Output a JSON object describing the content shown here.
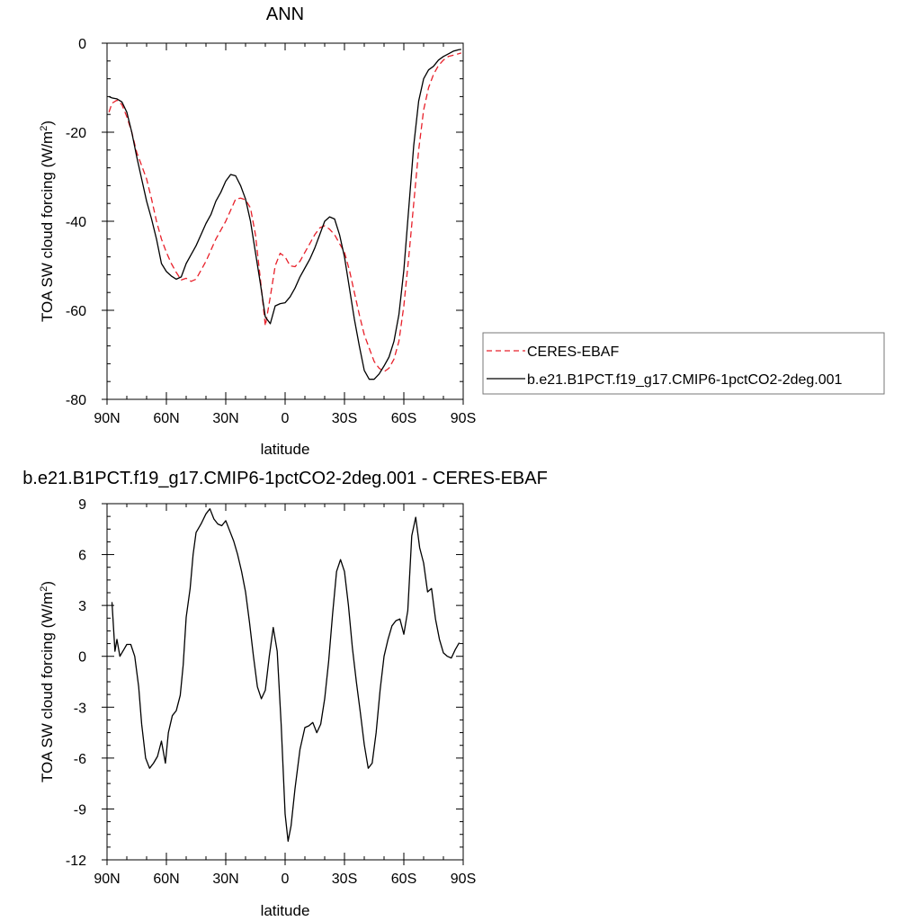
{
  "chart_data": [
    {
      "type": "line",
      "title": "ANN",
      "xlabel": "latitude",
      "ylabel": "TOA SW cloud forcing (W/m²)",
      "ylabel_base": "TOA SW cloud forcing (W/m",
      "ylabel_sup": "2",
      "ylabel_end": ")",
      "xlim": [
        90,
        -90
      ],
      "ylim": [
        -80,
        0
      ],
      "x_ticks": [
        90,
        60,
        30,
        0,
        -30,
        -60,
        -90
      ],
      "x_tick_labels": [
        "90N",
        "60N",
        "30N",
        "0",
        "30S",
        "60S",
        "90S"
      ],
      "y_ticks": [
        0,
        -20,
        -40,
        -60,
        -80
      ],
      "y_tick_labels": [
        "0",
        "-20",
        "-40",
        "-60",
        "-80"
      ],
      "legend_position": "right",
      "series": [
        {
          "name": "CERES-EBAF",
          "color": "#e8202a",
          "dash": "dashed",
          "x": [
            89,
            87.5,
            85,
            82.5,
            80,
            77.5,
            75,
            72.5,
            70,
            67.5,
            65,
            62.5,
            60,
            57.5,
            55,
            52.5,
            50,
            47.5,
            45,
            42.5,
            40,
            37.5,
            35,
            32.5,
            30,
            27.5,
            25,
            22.5,
            20,
            17.5,
            15,
            12.5,
            10,
            7.5,
            5,
            2.5,
            0,
            -2.5,
            -5,
            -7.5,
            -10,
            -12.5,
            -15,
            -17.5,
            -20,
            -22.5,
            -25,
            -27.5,
            -30,
            -32.5,
            -35,
            -37.5,
            -40,
            -42.5,
            -45,
            -47.5,
            -50,
            -52.5,
            -55,
            -57.5,
            -60,
            -62.5,
            -65,
            -67.5,
            -70,
            -72.5,
            -75,
            -77.5,
            -80,
            -82.5,
            -85,
            -87.5,
            -89
          ],
          "y": [
            -15.5,
            -13.5,
            -12.8,
            -13.8,
            -16.5,
            -20,
            -24.5,
            -27.5,
            -30.5,
            -35,
            -40,
            -44,
            -47,
            -49.5,
            -51.5,
            -53.2,
            -52.8,
            -53.5,
            -53,
            -51,
            -49,
            -46.5,
            -44,
            -42,
            -40,
            -37.5,
            -35,
            -34.8,
            -35.2,
            -37,
            -43,
            -53,
            -63.5,
            -57,
            -50,
            -47.2,
            -48,
            -50,
            -50.2,
            -49,
            -47,
            -45,
            -43,
            -41.5,
            -41,
            -41.8,
            -43,
            -45,
            -47,
            -51,
            -56,
            -61,
            -65.5,
            -68.5,
            -71.5,
            -73,
            -73.8,
            -73,
            -71,
            -67,
            -59,
            -48,
            -36,
            -24,
            -15,
            -10,
            -7,
            -5,
            -3.8,
            -3,
            -2.7,
            -2.4,
            -2.2
          ]
        },
        {
          "name": "b.e21.B1PCT.f19_g17.CMIP6-1pctCO2-2deg.001",
          "color": "#000000",
          "dash": "solid",
          "x": [
            89,
            87.5,
            85,
            82.5,
            80,
            77.5,
            75,
            72.5,
            70,
            67.5,
            65,
            62.5,
            60,
            57.5,
            55,
            52.5,
            50,
            47.5,
            45,
            42.5,
            40,
            37.5,
            35,
            32.5,
            30,
            27.5,
            25,
            22.5,
            20,
            17.5,
            15,
            12.5,
            10,
            7.5,
            5,
            2.5,
            0,
            -2.5,
            -5,
            -7.5,
            -10,
            -12.5,
            -15,
            -17.5,
            -20,
            -22.5,
            -25,
            -27.5,
            -30,
            -32.5,
            -35,
            -37.5,
            -40,
            -42.5,
            -45,
            -47.5,
            -50,
            -52.5,
            -55,
            -57.5,
            -60,
            -62.5,
            -65,
            -67.5,
            -70,
            -72.5,
            -75,
            -77.5,
            -80,
            -82.5,
            -85,
            -87.5,
            -89
          ],
          "y": [
            -12,
            -12.3,
            -12.5,
            -13.2,
            -15.5,
            -20,
            -25.5,
            -30.5,
            -35.5,
            -39.5,
            -44,
            -49.5,
            -51.3,
            -52.3,
            -53,
            -52.5,
            -49.5,
            -47.5,
            -45.5,
            -43,
            -40.5,
            -38.5,
            -35.5,
            -33.5,
            -31,
            -29.5,
            -29.8,
            -32,
            -35,
            -40,
            -47,
            -54,
            -61.5,
            -63,
            -59,
            -58.5,
            -58.3,
            -57,
            -55,
            -52.5,
            -50.5,
            -48.5,
            -46,
            -43,
            -40,
            -39,
            -39.5,
            -43,
            -48,
            -55,
            -62,
            -68,
            -73.5,
            -75.5,
            -75.5,
            -74.3,
            -72.5,
            -70.5,
            -67,
            -61,
            -51,
            -37,
            -23,
            -13,
            -8,
            -6,
            -5.2,
            -3.8,
            -3,
            -2.4,
            -1.8,
            -1.5,
            -1.4
          ]
        }
      ]
    },
    {
      "type": "line",
      "title": "b.e21.B1PCT.f19_g17.CMIP6-1pctCO2-2deg.001 - CERES-EBAF",
      "xlabel": "latitude",
      "ylabel": "TOA SW cloud forcing (W/m²)",
      "ylabel_base": "TOA SW cloud forcing (W/m",
      "ylabel_sup": "2",
      "ylabel_end": ")",
      "xlim": [
        90,
        -90
      ],
      "ylim": [
        -12,
        9
      ],
      "x_ticks": [
        90,
        60,
        30,
        0,
        -30,
        -60,
        -90
      ],
      "x_tick_labels": [
        "90N",
        "60N",
        "30N",
        "0",
        "30S",
        "60S",
        "90S"
      ],
      "y_ticks": [
        9,
        6,
        3,
        0,
        -3,
        -6,
        -9,
        -12
      ],
      "y_tick_labels": [
        "9",
        "6",
        "3",
        "0",
        "-3",
        "-6",
        "-9",
        "-12"
      ],
      "series": [
        {
          "color": "#000000",
          "dash": "solid",
          "x": [
            87.5,
            86,
            85,
            83.5,
            81.5,
            80,
            78,
            76,
            74,
            72.5,
            70.5,
            68.5,
            66.5,
            64.5,
            62.5,
            60.5,
            59,
            57,
            55,
            53,
            51.5,
            50,
            48,
            46.5,
            45,
            42.5,
            40,
            38,
            36,
            34,
            32,
            30,
            28,
            26,
            24,
            22,
            20,
            18,
            16,
            14,
            12,
            10,
            8,
            6,
            4,
            2,
            0,
            -1.5,
            -3,
            -5,
            -7.5,
            -10,
            -12,
            -14,
            -16,
            -18,
            -20,
            -22,
            -24,
            -26,
            -28,
            -30,
            -32,
            -34,
            -36,
            -38,
            -40,
            -42,
            -44,
            -46,
            -48,
            -50,
            -52,
            -54,
            -56,
            -58,
            -60,
            -62,
            -64,
            -66,
            -68,
            -70,
            -72,
            -74,
            -76,
            -78,
            -80,
            -82,
            -84,
            -86,
            -88
          ],
          "y": [
            3.2,
            0.3,
            1.0,
            0.0,
            0.4,
            0.7,
            0.7,
            0.0,
            -1.8,
            -4,
            -6,
            -6.6,
            -6.3,
            -5.9,
            -5.0,
            -6.3,
            -4.5,
            -3.5,
            -3.2,
            -2.3,
            -0.5,
            2.3,
            4.0,
            6.0,
            7.3,
            7.8,
            8.4,
            8.7,
            8.1,
            7.8,
            7.7,
            8.0,
            7.4,
            6.8,
            6.0,
            5.0,
            3.8,
            2.0,
            0.0,
            -1.8,
            -2.5,
            -2.0,
            0.0,
            1.7,
            0.3,
            -4.0,
            -9.3,
            -10.9,
            -10.0,
            -7.8,
            -5.5,
            -4.2,
            -4.1,
            -3.9,
            -4.5,
            -4.0,
            -2.5,
            -0.3,
            2.5,
            5.0,
            5.7,
            5.0,
            3.0,
            0.5,
            -1.5,
            -3.3,
            -5.2,
            -6.6,
            -6.3,
            -4.5,
            -2.0,
            0.0,
            1.0,
            1.8,
            2.1,
            2.2,
            1.3,
            2.7,
            7.1,
            8.2,
            6.4,
            5.5,
            3.8,
            4.0,
            2.2,
            1.0,
            0.2,
            0.0,
            -0.1,
            0.4,
            0.8
          ]
        }
      ]
    }
  ]
}
